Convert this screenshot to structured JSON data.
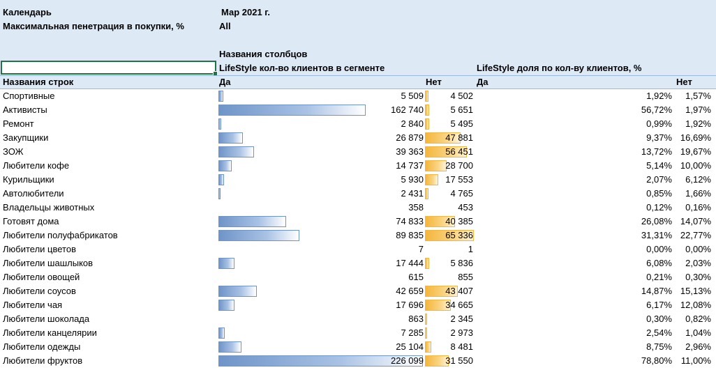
{
  "filters": {
    "calendar_label": "Календарь",
    "calendar_value": "Мар 2021 г.",
    "penetration_label": "Максимальная пенетрация в покупки, %",
    "penetration_value": "All"
  },
  "header": {
    "column_names": "Названия столбцов",
    "measure1": "LifeStyle кол-во клиентов  в сегменте",
    "measure2": "LifeStyle доля по кол-ву клиентов, %",
    "row_names": "Названия строк",
    "yes": "Да",
    "no": "Нет",
    "yes2": "Да",
    "no2": "Нет"
  },
  "colors": {
    "yes_bar": "#6f94c8",
    "no_bar": "#f4b63c",
    "header_band": "#dde9f5",
    "selection": "#217346"
  },
  "rows": [
    {
      "name": "Спортивные",
      "yes": "5 509",
      "no": "4 502",
      "yes_pct": "1,92%",
      "no_pct": "1,57%"
    },
    {
      "name": "Активисты",
      "yes": "162 740",
      "no": "5 651",
      "yes_pct": "56,72%",
      "no_pct": "1,97%"
    },
    {
      "name": "Ремонт",
      "yes": "2 840",
      "no": "5 495",
      "yes_pct": "0,99%",
      "no_pct": "1,92%"
    },
    {
      "name": "Закупщики",
      "yes": "26 879",
      "no": "47 881",
      "yes_pct": "9,37%",
      "no_pct": "16,69%"
    },
    {
      "name": "ЗОЖ",
      "yes": "39 363",
      "no": "56 451",
      "yes_pct": "13,72%",
      "no_pct": "19,67%"
    },
    {
      "name": "Любители кофе",
      "yes": "14 737",
      "no": "28 700",
      "yes_pct": "5,14%",
      "no_pct": "10,00%"
    },
    {
      "name": "Курильщики",
      "yes": "5 930",
      "no": "17 553",
      "yes_pct": "2,07%",
      "no_pct": "6,12%"
    },
    {
      "name": "Автолюбители",
      "yes": "2 431",
      "no": "4 765",
      "yes_pct": "0,85%",
      "no_pct": "1,66%"
    },
    {
      "name": "Владельцы животных",
      "yes": "358",
      "no": "453",
      "yes_pct": "0,12%",
      "no_pct": "0,16%"
    },
    {
      "name": "Готовят дома",
      "yes": "74 833",
      "no": "40 385",
      "yes_pct": "26,08%",
      "no_pct": "14,07%"
    },
    {
      "name": "Любители полуфабрикатов",
      "yes": "89 835",
      "no": "65 336",
      "yes_pct": "31,31%",
      "no_pct": "22,77%"
    },
    {
      "name": "Любители цветов",
      "yes": "7",
      "no": "1",
      "yes_pct": "0,00%",
      "no_pct": "0,00%"
    },
    {
      "name": "Любители шашлыков",
      "yes": "17 444",
      "no": "5 836",
      "yes_pct": "6,08%",
      "no_pct": "2,03%"
    },
    {
      "name": "Любители овощей",
      "yes": "615",
      "no": "855",
      "yes_pct": "0,21%",
      "no_pct": "0,30%"
    },
    {
      "name": "Любители соусов",
      "yes": "42 659",
      "no": "43 407",
      "yes_pct": "14,87%",
      "no_pct": "15,13%"
    },
    {
      "name": "Любители чая",
      "yes": "17 696",
      "no": "34 665",
      "yes_pct": "6,17%",
      "no_pct": "12,08%"
    },
    {
      "name": "Любители шоколада",
      "yes": "863",
      "no": "2 345",
      "yes_pct": "0,30%",
      "no_pct": "0,82%"
    },
    {
      "name": "Любители канцелярии",
      "yes": "7 285",
      "no": "2 973",
      "yes_pct": "2,54%",
      "no_pct": "1,04%"
    },
    {
      "name": "Любители одежды",
      "yes": "25 104",
      "no": "8 481",
      "yes_pct": "8,75%",
      "no_pct": "2,96%"
    },
    {
      "name": "Любители фруктов",
      "yes": "226 099",
      "no": "31 550",
      "yes_pct": "78,80%",
      "no_pct": "11,00%"
    }
  ]
}
